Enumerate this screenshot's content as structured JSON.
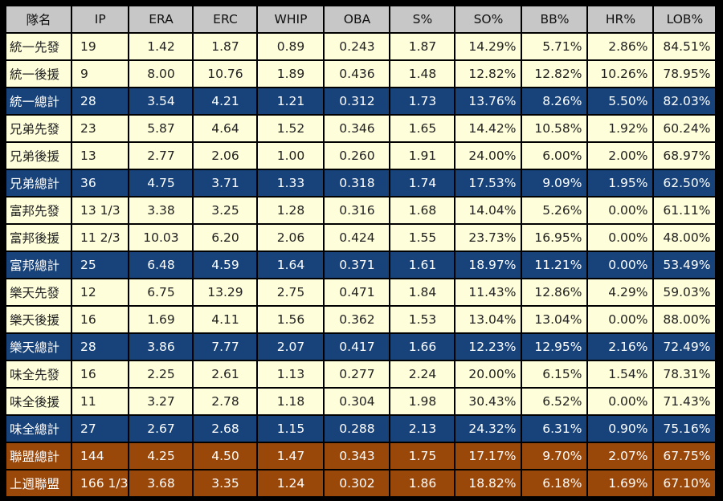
{
  "colors": {
    "header": "#c7c7c7",
    "light": "#fefedb",
    "team": "#17427a",
    "league": "#9a470a"
  },
  "headers": [
    "隊名",
    "IP",
    "ERA",
    "ERC",
    "WHIP",
    "OBA",
    "S%",
    "SO%",
    "BB%",
    "HR%",
    "LOB%"
  ],
  "rows": [
    {
      "type": "starter",
      "cells": [
        "統一先發",
        "19",
        "1.42",
        "1.87",
        "0.89",
        "0.243",
        "1.87",
        "14.29%",
        "5.71%",
        "2.86%",
        "84.51%"
      ]
    },
    {
      "type": "reliever",
      "cells": [
        "統一後援",
        "9",
        "8.00",
        "10.76",
        "1.89",
        "0.436",
        "1.48",
        "12.82%",
        "12.82%",
        "10.26%",
        "78.95%"
      ]
    },
    {
      "type": "team",
      "cells": [
        "統一總計",
        "28",
        "3.54",
        "4.21",
        "1.21",
        "0.312",
        "1.73",
        "13.76%",
        "8.26%",
        "5.50%",
        "82.03%"
      ]
    },
    {
      "type": "starter",
      "cells": [
        "兄弟先發",
        "23",
        "5.87",
        "4.64",
        "1.52",
        "0.346",
        "1.65",
        "14.42%",
        "10.58%",
        "1.92%",
        "60.24%"
      ]
    },
    {
      "type": "reliever",
      "cells": [
        "兄弟後援",
        "13",
        "2.77",
        "2.06",
        "1.00",
        "0.260",
        "1.91",
        "24.00%",
        "6.00%",
        "2.00%",
        "68.97%"
      ]
    },
    {
      "type": "team",
      "cells": [
        "兄弟總計",
        "36",
        "4.75",
        "3.71",
        "1.33",
        "0.318",
        "1.74",
        "17.53%",
        "9.09%",
        "1.95%",
        "62.50%"
      ]
    },
    {
      "type": "starter",
      "cells": [
        "富邦先發",
        "13 1/3",
        "3.38",
        "3.25",
        "1.28",
        "0.316",
        "1.68",
        "14.04%",
        "5.26%",
        "0.00%",
        "61.11%"
      ]
    },
    {
      "type": "reliever",
      "cells": [
        "富邦後援",
        "11 2/3",
        "10.03",
        "6.20",
        "2.06",
        "0.424",
        "1.55",
        "23.73%",
        "16.95%",
        "0.00%",
        "48.00%"
      ]
    },
    {
      "type": "team",
      "cells": [
        "富邦總計",
        "25",
        "6.48",
        "4.59",
        "1.64",
        "0.371",
        "1.61",
        "18.97%",
        "11.21%",
        "0.00%",
        "53.49%"
      ]
    },
    {
      "type": "starter",
      "cells": [
        "樂天先發",
        "12",
        "6.75",
        "13.29",
        "2.75",
        "0.471",
        "1.84",
        "11.43%",
        "12.86%",
        "4.29%",
        "59.03%"
      ]
    },
    {
      "type": "reliever",
      "cells": [
        "樂天後援",
        "16",
        "1.69",
        "4.11",
        "1.56",
        "0.362",
        "1.53",
        "13.04%",
        "13.04%",
        "0.00%",
        "88.00%"
      ]
    },
    {
      "type": "team",
      "cells": [
        "樂天總計",
        "28",
        "3.86",
        "7.77",
        "2.07",
        "0.417",
        "1.66",
        "12.23%",
        "12.95%",
        "2.16%",
        "72.49%"
      ]
    },
    {
      "type": "starter",
      "cells": [
        "味全先發",
        "16",
        "2.25",
        "2.61",
        "1.13",
        "0.277",
        "2.24",
        "20.00%",
        "6.15%",
        "1.54%",
        "78.31%"
      ]
    },
    {
      "type": "reliever",
      "cells": [
        "味全後援",
        "11",
        "3.27",
        "2.78",
        "1.18",
        "0.304",
        "1.98",
        "30.43%",
        "6.52%",
        "0.00%",
        "71.43%"
      ]
    },
    {
      "type": "team",
      "cells": [
        "味全總計",
        "27",
        "2.67",
        "2.68",
        "1.15",
        "0.288",
        "2.13",
        "24.32%",
        "6.31%",
        "0.90%",
        "75.16%"
      ]
    },
    {
      "type": "league",
      "cells": [
        "聯盟總計",
        "144",
        "4.25",
        "4.50",
        "1.47",
        "0.343",
        "1.75",
        "17.17%",
        "9.70%",
        "2.07%",
        "67.75%"
      ]
    },
    {
      "type": "league",
      "cells": [
        "上週聯盟",
        "166 1/3",
        "3.68",
        "3.35",
        "1.24",
        "0.302",
        "1.86",
        "18.82%",
        "6.18%",
        "1.69%",
        "67.10%"
      ]
    }
  ]
}
